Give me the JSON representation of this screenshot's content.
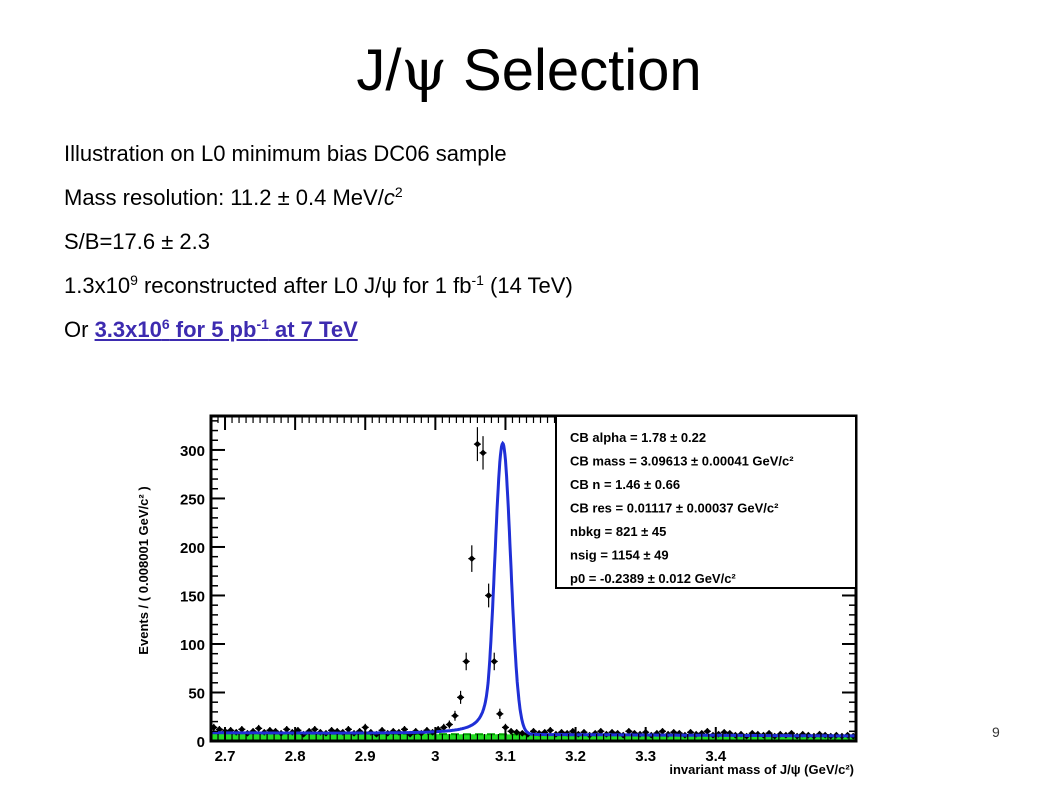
{
  "slide": {
    "title_prefix": "J/",
    "title_psi": "ψ",
    "title_suffix": " Selection",
    "page_number": "9"
  },
  "bullets": {
    "b1": "Illustration on L0 minimum bias DC06 sample",
    "b2_text": "Mass resolution: 11.2 ± 0.4 MeV/",
    "b2_c": "c",
    "b2_sup": "2",
    "b3": "S/B=17.6 ± 2.3",
    "b4_a": "1.3x10",
    "b4_sup1": "9",
    "b4_b": " reconstructed after L0 J/ψ for 1 fb",
    "b4_sup2": "-1",
    "b4_c": " (14 TeV)",
    "b5_prefix": "Or ",
    "b5_link_a": "3.3x10",
    "b5_link_sup1": "6",
    "b5_link_b": " for 5 pb",
    "b5_link_sup2": "-1",
    "b5_link_c": " at 7 TeV"
  },
  "chart_data": {
    "type": "scatter",
    "xlabel": "invariant mass of J/ψ (GeV/c²)",
    "ylabel": "Events / ( 0.008001 GeV/c² )",
    "xlim": [
      2.68,
      3.6
    ],
    "ylim": [
      0,
      335
    ],
    "x_ticks": [
      2.7,
      2.8,
      2.9,
      3,
      3.1,
      3.2,
      3.3,
      3.4
    ],
    "x_tick_labels": [
      "2.7",
      "2.8",
      "2.9",
      "3",
      "3.1",
      "3.2",
      "3.3",
      "3.4"
    ],
    "y_ticks": [
      0,
      50,
      100,
      150,
      200,
      250,
      300
    ],
    "y_tick_labels": [
      "0",
      "50",
      "100",
      "150",
      "200",
      "250",
      "300"
    ],
    "fit_params": [
      "CB alpha =  1.78 ± 0.22",
      "CB mass =  3.09613 ± 0.00041 GeV/c²",
      "CB n =  1.46 ± 0.66",
      "CB res =  0.01117 ± 0.00037 GeV/c²",
      "nbkg =  821 ± 45",
      "nsig =  1154 ± 49",
      "p0 = -0.2389 ± 0.012 GeV/c²"
    ],
    "series": [
      {
        "kind": "data_points",
        "x": [
          2.684,
          2.692,
          2.7,
          2.708,
          2.716,
          2.724,
          2.732,
          2.74,
          2.748,
          2.756,
          2.764,
          2.772,
          2.78,
          2.788,
          2.796,
          2.804,
          2.812,
          2.82,
          2.828,
          2.836,
          2.844,
          2.852,
          2.86,
          2.868,
          2.876,
          2.884,
          2.892,
          2.9,
          2.908,
          2.916,
          2.924,
          2.932,
          2.94,
          2.948,
          2.956,
          2.964,
          2.972,
          2.98,
          2.988,
          2.996,
          3.004,
          3.012,
          3.02,
          3.028,
          3.036,
          3.044,
          3.052,
          3.06,
          3.068,
          3.076,
          3.084,
          3.092,
          3.1,
          3.108,
          3.116,
          3.124,
          3.132,
          3.14,
          3.148,
          3.156,
          3.164,
          3.172,
          3.18,
          3.188,
          3.196,
          3.204,
          3.212,
          3.22,
          3.228,
          3.236,
          3.244,
          3.252,
          3.26,
          3.268,
          3.276,
          3.284,
          3.292,
          3.3,
          3.308,
          3.316,
          3.324,
          3.332,
          3.34,
          3.348,
          3.356,
          3.364,
          3.372,
          3.38,
          3.388,
          3.396,
          3.404,
          3.412,
          3.42,
          3.428,
          3.436,
          3.444,
          3.452,
          3.46,
          3.468,
          3.476,
          3.484,
          3.492,
          3.5,
          3.508,
          3.516,
          3.524,
          3.532,
          3.54,
          3.548,
          3.556,
          3.564,
          3.572,
          3.58,
          3.588,
          3.596
        ],
        "y": [
          14,
          12,
          10,
          11,
          9,
          12,
          8,
          10,
          13,
          9,
          11,
          10,
          8,
          12,
          9,
          11,
          7,
          10,
          12,
          9,
          8,
          11,
          10,
          9,
          12,
          8,
          10,
          14,
          9,
          7,
          11,
          8,
          10,
          9,
          12,
          7,
          10,
          8,
          11,
          9,
          12,
          14,
          17,
          26,
          45,
          82,
          188,
          306,
          297,
          150,
          82,
          28,
          14,
          10,
          9,
          8,
          7,
          10,
          8,
          9,
          11,
          7,
          9,
          8,
          10,
          7,
          9,
          6,
          8,
          10,
          7,
          9,
          8,
          6,
          10,
          8,
          7,
          9,
          6,
          8,
          10,
          7,
          9,
          8,
          6,
          9,
          7,
          8,
          10,
          6,
          7,
          9,
          8,
          6,
          7,
          5,
          8,
          7,
          6,
          8,
          5,
          7,
          6,
          8,
          5,
          7,
          6,
          5,
          7,
          6,
          5,
          6,
          5,
          6,
          5
        ]
      },
      {
        "kind": "fit_total",
        "color": "#1f2fd6"
      },
      {
        "kind": "fit_background",
        "color": "#00dd00"
      }
    ]
  }
}
